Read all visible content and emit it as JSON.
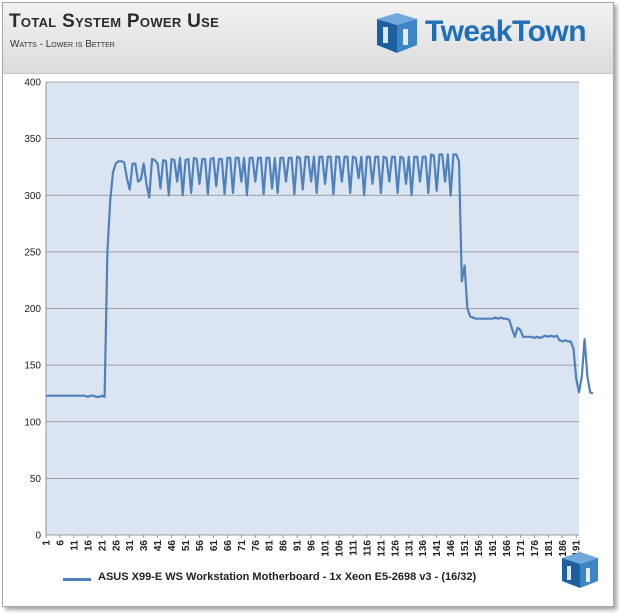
{
  "header": {
    "title": "Total System Power Use",
    "subtitle": "Watts - Lower is Better",
    "logo_text": "TweakTown"
  },
  "colors": {
    "plot_bg": "#dbe5f1",
    "line": "#4f81bd",
    "grid": "#8c8c8c"
  },
  "icons": [
    "tweaktown-logo-icon",
    "tweaktown-corner-logo-icon"
  ],
  "chart_data": {
    "type": "line",
    "title": "Total System Power Use",
    "subtitle": "Watts - Lower is Better",
    "xlabel": "",
    "ylabel": "",
    "ylim": [
      0,
      400
    ],
    "yticks": [
      0,
      50,
      100,
      150,
      200,
      250,
      300,
      350,
      400
    ],
    "xticks": [
      1,
      6,
      11,
      16,
      21,
      26,
      31,
      36,
      41,
      46,
      51,
      56,
      61,
      66,
      71,
      76,
      81,
      86,
      91,
      96,
      101,
      106,
      111,
      116,
      121,
      126,
      131,
      136,
      141,
      146,
      151,
      156,
      161,
      166,
      171,
      176,
      181,
      186,
      191
    ],
    "xlim": [
      1,
      192
    ],
    "grid": "horizontal",
    "legend_position": "bottom",
    "series": [
      {
        "name": "ASUS X99-E WS Workstation Motherboard - 1x Xeon E5-2698 v3 - (16/32)",
        "values": [
          123,
          123,
          123,
          123,
          123,
          123,
          123,
          123,
          123,
          123,
          123,
          123,
          123,
          123,
          123,
          122,
          123,
          123,
          122,
          122,
          123,
          122,
          250,
          295,
          320,
          328,
          330,
          330,
          329,
          315,
          305,
          328,
          328,
          312,
          314,
          328,
          310,
          298,
          332,
          331,
          328,
          306,
          331,
          330,
          300,
          332,
          331,
          312,
          333,
          300,
          331,
          332,
          302,
          333,
          332,
          310,
          332,
          332,
          301,
          332,
          333,
          308,
          332,
          332,
          301,
          333,
          333,
          302,
          333,
          333,
          312,
          333,
          300,
          333,
          333,
          312,
          333,
          333,
          301,
          333,
          333,
          306,
          333,
          302,
          333,
          333,
          312,
          333,
          333,
          301,
          334,
          333,
          305,
          334,
          334,
          312,
          334,
          302,
          334,
          334,
          310,
          334,
          334,
          301,
          334,
          334,
          312,
          334,
          334,
          302,
          334,
          333,
          315,
          334,
          300,
          334,
          334,
          310,
          334,
          334,
          302,
          334,
          333,
          312,
          334,
          334,
          302,
          334,
          333,
          310,
          334,
          300,
          334,
          334,
          312,
          334,
          334,
          302,
          336,
          335,
          304,
          336,
          336,
          312,
          336,
          300,
          336,
          336,
          330,
          224,
          238,
          200,
          193,
          192,
          191,
          191,
          191,
          191,
          191,
          191,
          191,
          192,
          191,
          192,
          191,
          191,
          190,
          182,
          175,
          183,
          181,
          175,
          175,
          175,
          175,
          174,
          175,
          174,
          175,
          176,
          175,
          176,
          175,
          176,
          172,
          171,
          172,
          171,
          171,
          165,
          138,
          126,
          140,
          173,
          140,
          126,
          125
        ]
      }
    ]
  }
}
